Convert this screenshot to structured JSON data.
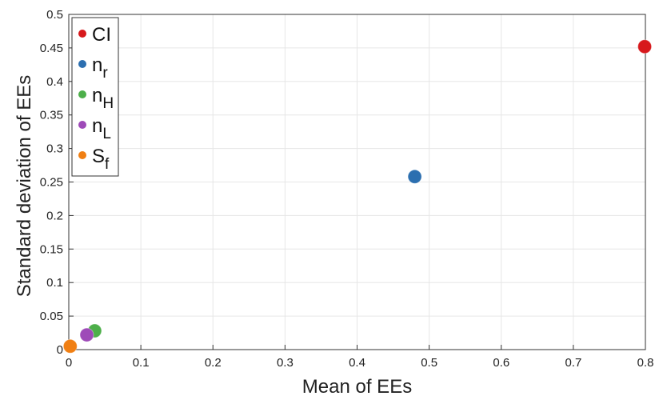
{
  "chart_data": {
    "type": "scatter",
    "xlabel": "Mean of EEs",
    "ylabel": "Standard deviation of EEs",
    "xlim": [
      0,
      0.8
    ],
    "ylim": [
      0,
      0.5
    ],
    "x_ticks": [
      "0",
      "0.1",
      "0.2",
      "0.3",
      "0.4",
      "0.5",
      "0.6",
      "0.7",
      "0.8"
    ],
    "y_ticks": [
      "0",
      "0.05",
      "0.1",
      "0.15",
      "0.2",
      "0.25",
      "0.3",
      "0.35",
      "0.4",
      "0.45",
      "0.5"
    ],
    "grid": true,
    "legend_position": "top-left",
    "series": [
      {
        "name": "CI",
        "base": "CI",
        "sub": "",
        "color": "#d7191c",
        "x": 0.799,
        "y": 0.452
      },
      {
        "name": "n_r",
        "base": "n",
        "sub": "r",
        "color": "#2c6fb0",
        "x": 0.48,
        "y": 0.258
      },
      {
        "name": "n_H",
        "base": "n",
        "sub": "H",
        "color": "#4daf4a",
        "x": 0.036,
        "y": 0.028
      },
      {
        "name": "n_L",
        "base": "n",
        "sub": "L",
        "color": "#9e4ab8",
        "x": 0.025,
        "y": 0.022
      },
      {
        "name": "S_f",
        "base": "S",
        "sub": "f",
        "color": "#f07f13",
        "x": 0.002,
        "y": 0.005
      }
    ]
  }
}
